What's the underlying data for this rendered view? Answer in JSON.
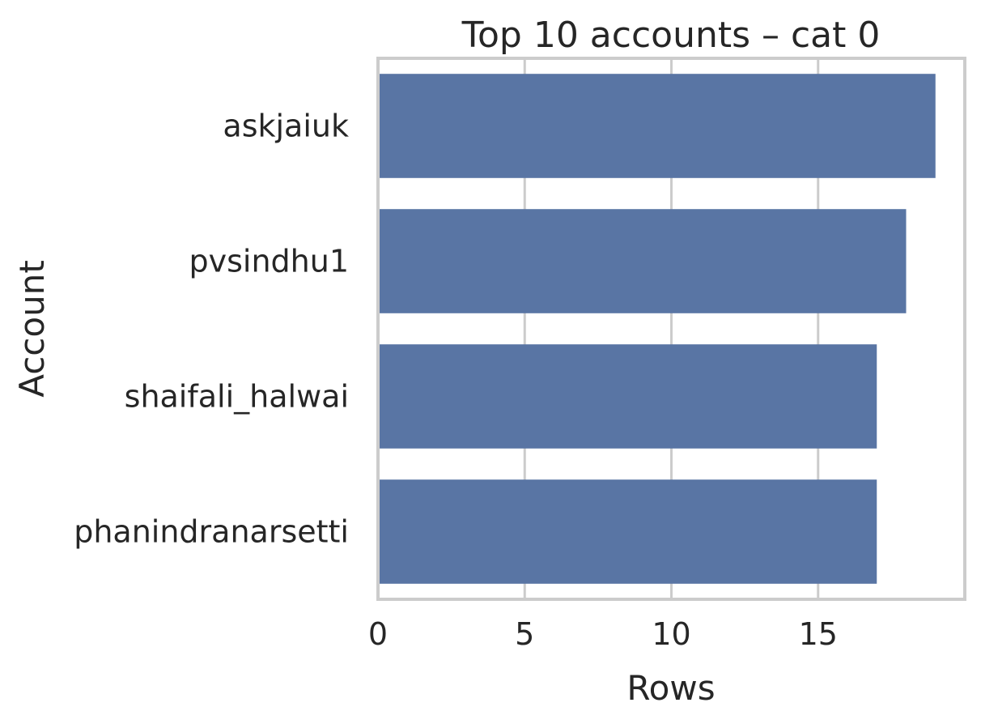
{
  "chart_data": {
    "type": "bar",
    "orientation": "horizontal",
    "title": "Top 10 accounts – cat 0",
    "xlabel": "Rows",
    "ylabel": "Account",
    "categories": [
      "askjaiuk",
      "pvsindhu1",
      "shaifali_halwai",
      "phanindranarsetti"
    ],
    "values": [
      19,
      18,
      17,
      17
    ],
    "xlim": [
      0,
      20
    ],
    "xticks": [
      "0",
      "5",
      "10",
      "15"
    ],
    "grid": true,
    "bar_color": "#5975a4",
    "grid_color": "#cccccc",
    "spine_color": "#cccccc"
  }
}
